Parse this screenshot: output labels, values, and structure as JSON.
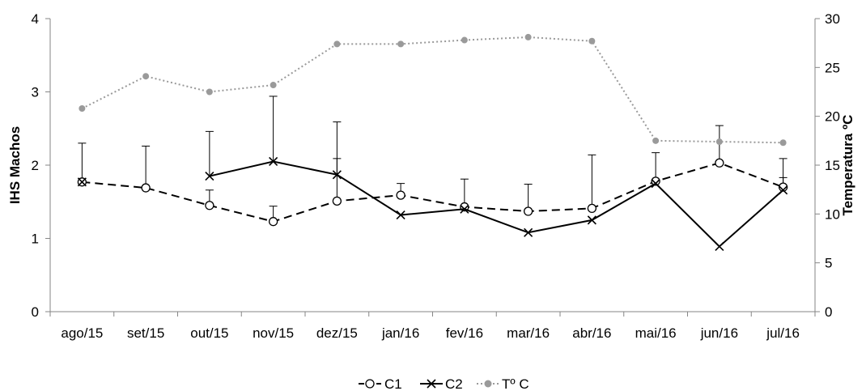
{
  "chart_data": {
    "type": "line",
    "categories": [
      "ago/15",
      "set/15",
      "out/15",
      "nov/15",
      "dez/15",
      "jan/16",
      "fev/16",
      "mar/16",
      "abr/16",
      "mai/16",
      "jun/16",
      "jul/16"
    ],
    "ylabel": "IHS Machos",
    "y2label": "Temperatura ºC",
    "ylim": [
      0,
      4
    ],
    "yticks": [
      "0",
      "1",
      "2",
      "3",
      "4"
    ],
    "y2lim": [
      0,
      30
    ],
    "y2ticks": [
      "0",
      "5",
      "10",
      "15",
      "20",
      "25",
      "30"
    ],
    "legend_position": "bottom",
    "series": [
      {
        "name": "C1",
        "axis": "left",
        "style": "dashed",
        "marker": "open-circle",
        "color": "#000000",
        "values": [
          1.77,
          1.69,
          1.45,
          1.23,
          1.51,
          1.59,
          1.43,
          1.37,
          1.41,
          1.78,
          2.03,
          1.7
        ],
        "error_plus": [
          0.53,
          0.57,
          0.21,
          0.21,
          0.58,
          0.16,
          0.38,
          0.37,
          0.73,
          0.39,
          0.51,
          0.39
        ]
      },
      {
        "name": "C2",
        "axis": "left",
        "style": "solid",
        "marker": "x",
        "color": "#000000",
        "values": [
          1.77,
          null,
          1.85,
          2.05,
          1.87,
          1.32,
          1.4,
          1.08,
          1.25,
          1.75,
          0.89,
          1.66
        ],
        "error_plus": [
          0,
          0,
          0.61,
          0.89,
          0.72,
          0,
          0,
          0,
          0,
          0,
          0,
          0.17
        ]
      },
      {
        "name": "Tº C",
        "axis": "right",
        "style": "dotted",
        "marker": "filled-circle",
        "color": "#9a9a9a",
        "values": [
          20.8,
          24.1,
          22.5,
          23.2,
          27.4,
          27.4,
          27.8,
          28.1,
          27.7,
          17.5,
          17.4,
          17.3
        ]
      }
    ]
  }
}
